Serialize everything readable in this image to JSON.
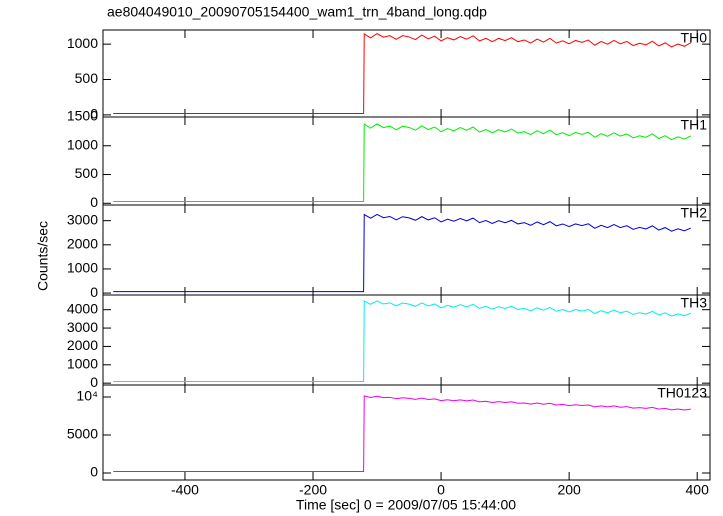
{
  "chart_data": {
    "type": "line",
    "title": "ae804049010_20090705154400_wam1_trn_4band_long.qdp",
    "xlabel": "Time [sec] 0 = 2009/07/05 15:44:00",
    "ylabel": "Counts/sec",
    "xlim": [
      -528,
      420
    ],
    "xticks": [
      -400,
      -200,
      0,
      200,
      400
    ],
    "x": [
      -512,
      -121,
      -120,
      -110,
      -100,
      -90,
      -80,
      -70,
      -60,
      -50,
      -40,
      -30,
      -20,
      -10,
      0,
      10,
      20,
      30,
      40,
      50,
      60,
      70,
      80,
      90,
      100,
      110,
      120,
      130,
      140,
      150,
      160,
      170,
      180,
      190,
      200,
      210,
      220,
      230,
      240,
      250,
      260,
      270,
      280,
      290,
      300,
      310,
      320,
      330,
      340,
      350,
      360,
      370,
      380,
      390
    ],
    "series": [
      {
        "name": "TH0",
        "color": "#ff0000",
        "ylim": [
          -30,
          1200
        ],
        "yticks": [
          0,
          500,
          1000
        ],
        "values": [
          20,
          20,
          1145,
          1088,
          1150,
          1098,
          1120,
          1068,
          1120,
          1102,
          1065,
          1128,
          1075,
          1112,
          1045,
          1092,
          1060,
          1108,
          1070,
          1118,
          1045,
          1082,
          1035,
          1082,
          1050,
          1092,
          1035,
          1058,
          1015,
          1072,
          1030,
          1082,
          1015,
          1048,
          1005,
          1052,
          1025,
          1058,
          985,
          1038,
          1000,
          1052,
          1005,
          1038,
          980,
          1012,
          990,
          1042,
          975,
          1018,
          960,
          1002,
          970,
          1018
        ]
      },
      {
        "name": "TH1",
        "color": "#00ee00",
        "ylim": [
          -30,
          1500
        ],
        "yticks": [
          0,
          500,
          1000,
          1500
        ],
        "values": [
          30,
          30,
          1376,
          1306,
          1380,
          1316,
          1342,
          1278,
          1340,
          1318,
          1272,
          1346,
          1282,
          1326,
          1244,
          1300,
          1260,
          1316,
          1270,
          1326,
          1238,
          1282,
          1224,
          1280,
          1240,
          1290,
          1220,
          1246,
          1194,
          1262,
          1210,
          1272,
          1190,
          1228,
          1176,
          1232,
          1198,
          1236,
          1148,
          1210,
          1164,
          1226,
          1168,
          1206,
          1136,
          1174,
          1146,
          1208,
          1126,
          1176,
          1106,
          1156,
          1116,
          1172
        ]
      },
      {
        "name": "TH2",
        "color": "#0000dd",
        "ylim": [
          -80,
          3650
        ],
        "yticks": [
          0,
          1000,
          2000,
          3000
        ],
        "values": [
          60,
          60,
          3255,
          3106,
          3258,
          3122,
          3174,
          3038,
          3164,
          3116,
          3017,
          3168,
          3032,
          3122,
          2948,
          3062,
          2976,
          3090,
          2992,
          3106,
          2920,
          3008,
          2885,
          2999,
          2913,
          3014,
          2866,
          2918,
          2806,
          2946,
          2834,
          2961,
          2788,
          2864,
          2753,
          2867,
          2794,
          2870,
          2684,
          2810,
          2712,
          2838,
          2715,
          2792,
          2643,
          2720,
          2658,
          2785,
          2612,
          2713,
          2564,
          2666,
          2580,
          2694
        ]
      },
      {
        "name": "TH3",
        "color": "#00eeee",
        "ylim": [
          -100,
          4800
        ],
        "yticks": [
          0,
          1000,
          2000,
          3000,
          4000
        ],
        "values": [
          90,
          90,
          4470,
          4292,
          4474,
          4311,
          4373,
          4210,
          4362,
          4304,
          4186,
          4368,
          4205,
          4312,
          4104,
          4241,
          4138,
          4275,
          4157,
          4294,
          4071,
          4178,
          4030,
          4167,
          4064,
          4186,
          4008,
          4070,
          3937,
          4104,
          3971,
          4123,
          3915,
          4007,
          3874,
          4011,
          3923,
          4015,
          3792,
          3944,
          3826,
          3978,
          3830,
          3922,
          3744,
          3836,
          3763,
          3915,
          3707,
          3829,
          3651,
          3773,
          3670,
          3807
        ]
      },
      {
        "name": "TH0123",
        "color": "#ee00ee",
        "ylim": [
          -920,
          11580
        ],
        "yticks": [
          0,
          5000,
          {
            "value": 10000,
            "label": "10⁴"
          }
        ],
        "values": [
          200,
          200,
          10140,
          9941,
          10102,
          9918,
          9959,
          9775,
          9906,
          9827,
          9688,
          9849,
          9665,
          9751,
          9522,
          9638,
          9514,
          9630,
          9491,
          9607,
          9363,
          9449,
          9280,
          9396,
          9272,
          9373,
          9174,
          9215,
          9061,
          9207,
          9053,
          9184,
          8955,
          9026,
          8872,
          8988,
          8879,
          8950,
          8706,
          8837,
          8698,
          8829,
          8660,
          8731,
          8532,
          8603,
          8509,
          8640,
          8411,
          8512,
          8313,
          8414,
          8290,
          8406
        ]
      }
    ]
  }
}
